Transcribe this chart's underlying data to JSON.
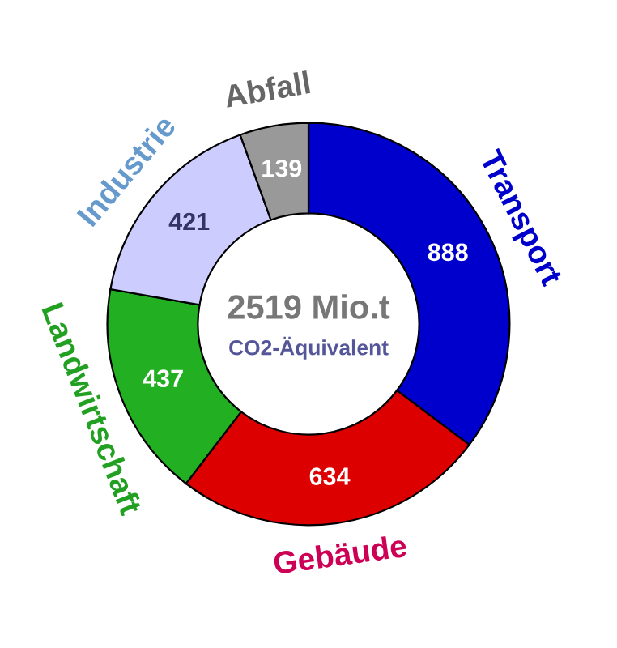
{
  "chart_data": {
    "type": "donut",
    "categories": [
      "Transport",
      "Gebäude",
      "Landwirtschaft",
      "Industrie",
      "Abfall"
    ],
    "values": [
      888,
      634,
      437,
      421,
      139
    ],
    "colors": [
      "#0000cc",
      "#dd0000",
      "#22b022",
      "#ccccff",
      "#999999"
    ],
    "data_labels": true,
    "annotations": [
      "2519 Mio.t",
      "CO2-Äquivalent"
    ]
  }
}
